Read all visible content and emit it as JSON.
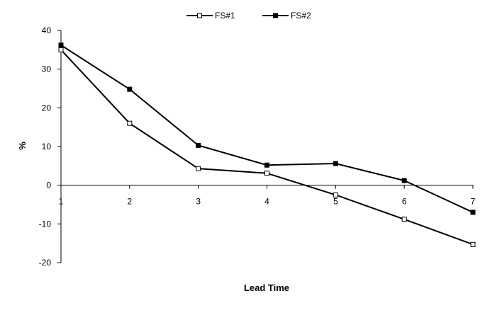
{
  "chart_data": {
    "type": "line",
    "title": "",
    "xlabel": "Lead Time",
    "ylabel": "%",
    "x": [
      1,
      2,
      3,
      4,
      5,
      6,
      7
    ],
    "ylim": [
      -20,
      40
    ],
    "y_ticks": [
      -20,
      -10,
      0,
      10,
      20,
      30,
      40
    ],
    "grid": false,
    "legend_position": "top-center",
    "series": [
      {
        "name": "FS#1",
        "marker": "hollow-square",
        "color": "#000000",
        "values": [
          35,
          16,
          4.3,
          3.1,
          -2.5,
          -8.8,
          -15.3
        ]
      },
      {
        "name": "FS#2",
        "marker": "filled-square",
        "color": "#000000",
        "values": [
          36.2,
          24.8,
          10.3,
          5.2,
          5.6,
          1.2,
          -7
        ]
      }
    ]
  }
}
